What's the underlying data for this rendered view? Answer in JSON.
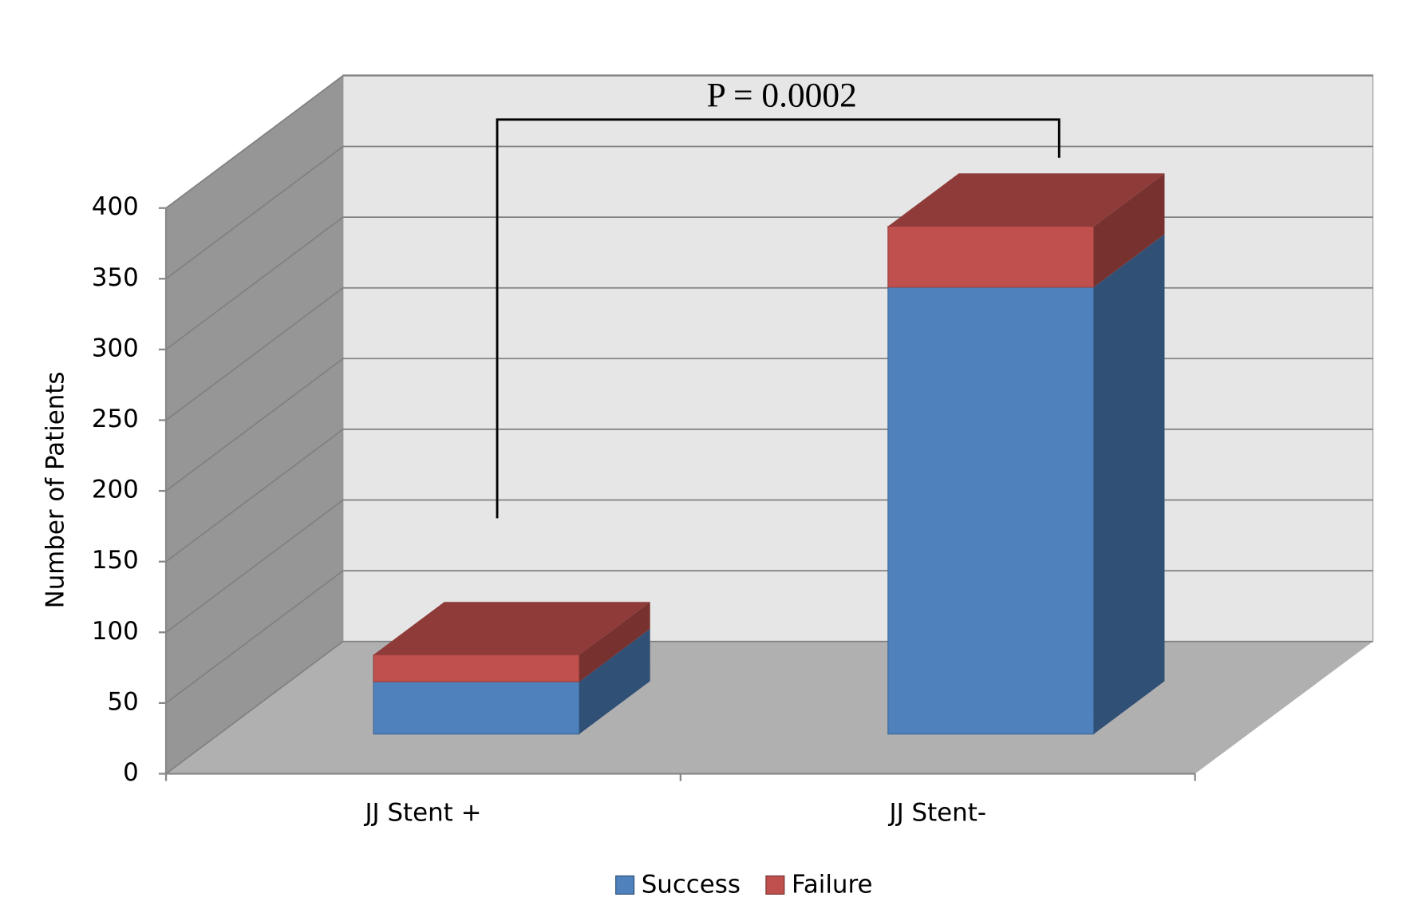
{
  "chart_data": {
    "type": "bar3d_stacked",
    "ylabel": "Number of Patients",
    "categories": [
      "JJ Stent +",
      "JJ Stent-"
    ],
    "series": [
      {
        "name": "Success",
        "color": "#4f81bd",
        "values": [
          37,
          316
        ]
      },
      {
        "name": "Failure",
        "color": "#c0504d",
        "values": [
          19,
          43
        ]
      }
    ],
    "ylim": [
      0,
      400
    ],
    "yticks": [
      0,
      50,
      100,
      150,
      200,
      250,
      300,
      350,
      400
    ],
    "grid": true,
    "legend": "bottom",
    "annotation": "P = 0.0002"
  }
}
